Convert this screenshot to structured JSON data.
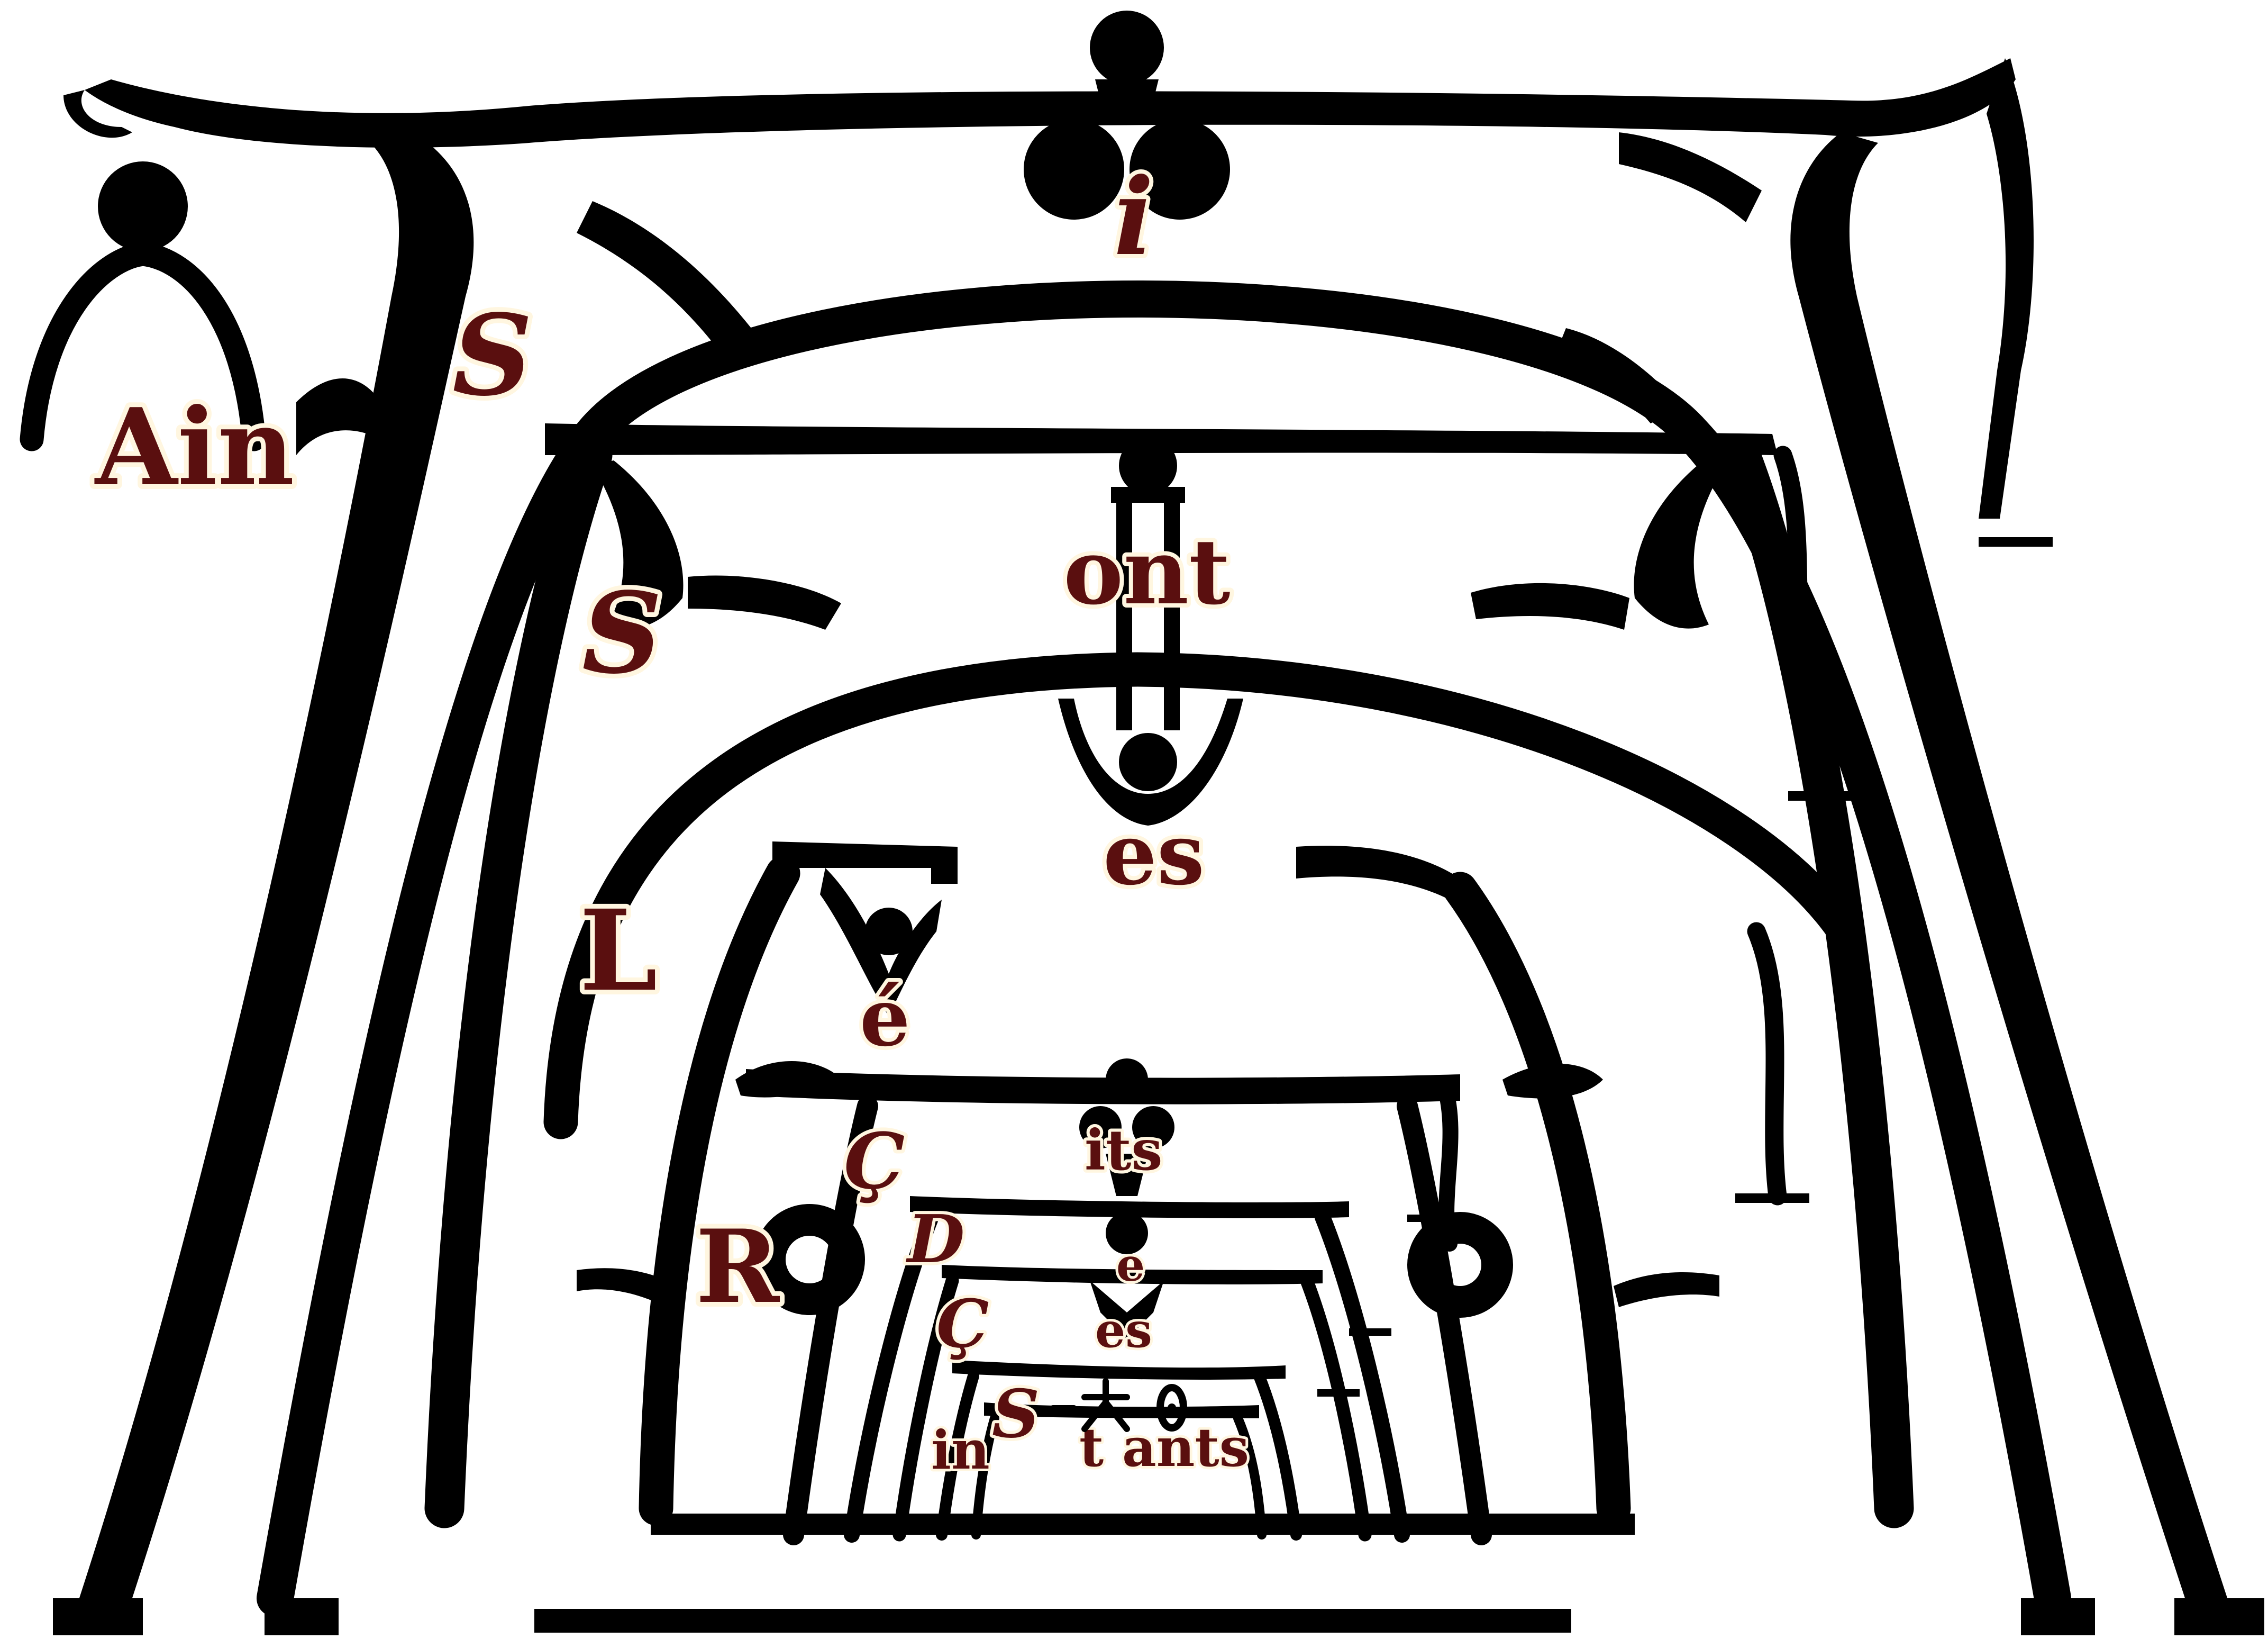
{
  "colors": {
    "ink": "#000000",
    "paper": "#ffffff",
    "letters": "#5a0f0f",
    "letter_halo": "#fff6e0"
  },
  "fragments": {
    "ain": "Ain",
    "s_outer": "S",
    "i_top": "i",
    "s_second": "S",
    "ont": "ont",
    "es_upper": "es",
    "l": "L",
    "e_accent": "é",
    "c_upper": "Ç",
    "its": "its",
    "r": "R",
    "d": "D",
    "e_small": "e",
    "c_lower": "Ç",
    "es_lower": "es",
    "s_small": "S",
    "in": "in",
    "t_ants": "t ants"
  }
}
